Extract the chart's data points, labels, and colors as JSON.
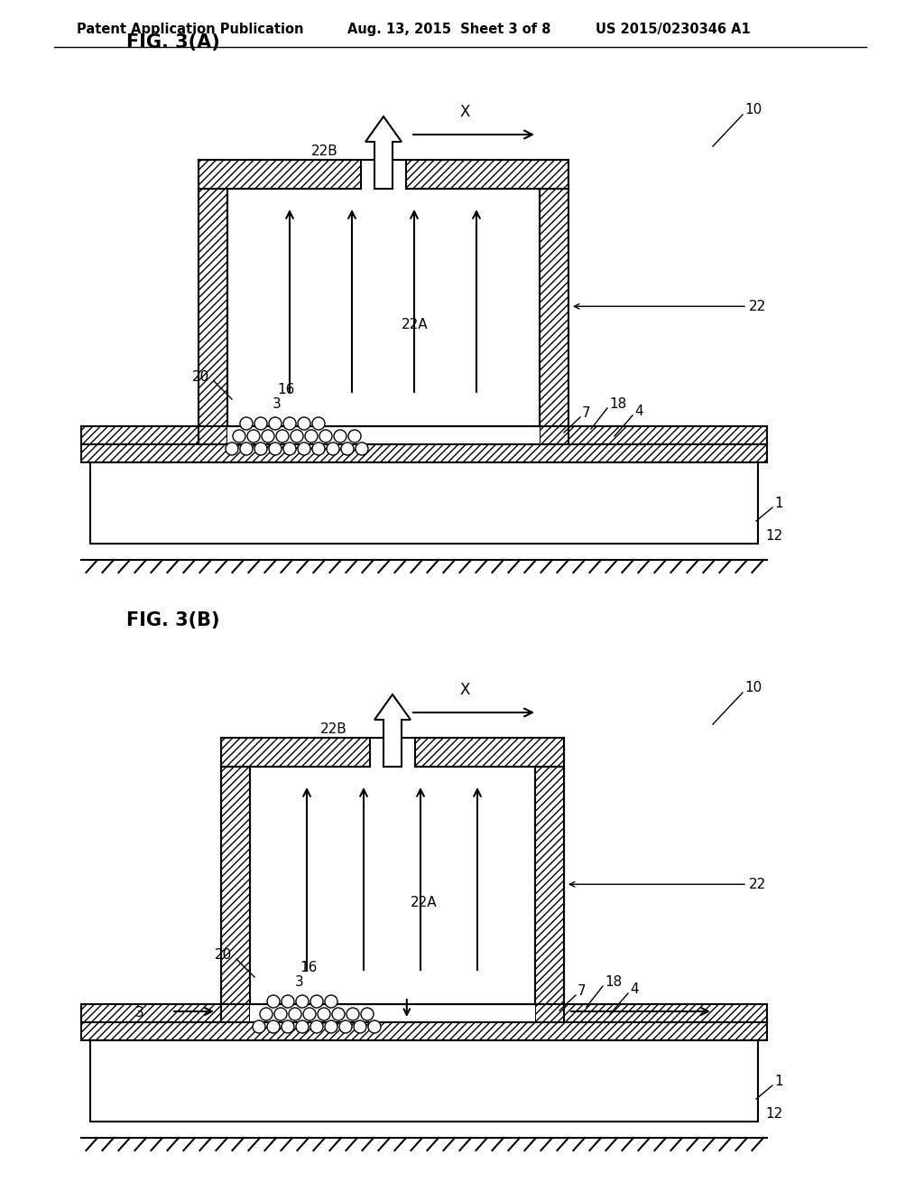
{
  "bg_color": "#ffffff",
  "header_text": "Patent Application Publication",
  "header_date": "Aug. 13, 2015  Sheet 3 of 8",
  "header_patent": "US 2015/0230346 A1",
  "fig_a_label": "FIG. 3(A)",
  "fig_b_label": "FIG. 3(B)"
}
